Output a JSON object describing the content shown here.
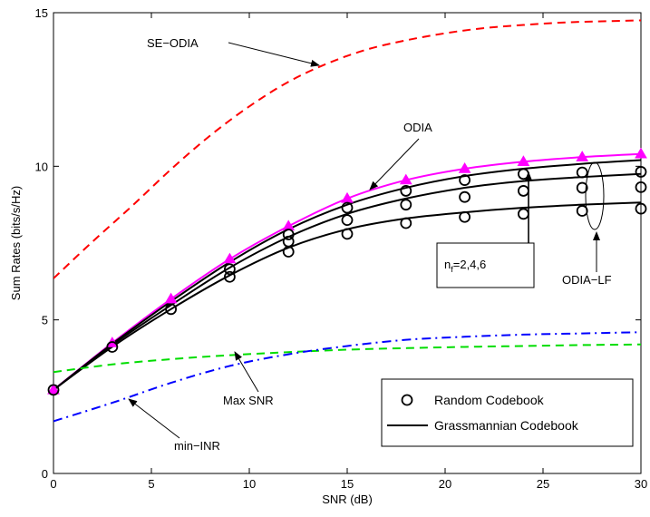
{
  "chart_data": {
    "type": "line",
    "xlabel": "SNR (dB)",
    "ylabel": "Sum Rates (bits/s/Hz)",
    "xlim": [
      0,
      30
    ],
    "ylim": [
      0,
      15
    ],
    "xticks": [
      "0",
      "5",
      "10",
      "15",
      "20",
      "25",
      "30"
    ],
    "yticks": [
      "0",
      "5",
      "10",
      "15"
    ],
    "grid": false,
    "legend_position": "bottom-right",
    "legend": {
      "random_label": "Random Codebook",
      "grass_label": "Grassmannian Codebook"
    },
    "series": [
      {
        "name": "SE−ODIA",
        "color": "#ff0000",
        "style": "dashed",
        "x": [
          0,
          2,
          4,
          6,
          8,
          10,
          12,
          14,
          16,
          18,
          20,
          22,
          24,
          26,
          28,
          30
        ],
        "y": [
          6.35,
          7.55,
          8.7,
          9.9,
          11.0,
          11.95,
          12.75,
          13.35,
          13.8,
          14.1,
          14.33,
          14.5,
          14.6,
          14.68,
          14.72,
          14.75
        ]
      },
      {
        "name": "ODIA",
        "color": "#ff00ff",
        "style": "solid",
        "marker": "triangle",
        "x": [
          0,
          3,
          6,
          9,
          12,
          15,
          18,
          21,
          24,
          27,
          30
        ],
        "y": [
          2.72,
          4.25,
          5.68,
          6.98,
          8.05,
          8.95,
          9.55,
          9.92,
          10.15,
          10.3,
          10.4
        ]
      },
      {
        "name": "ODIA−LF n_f=6",
        "color": "#000000",
        "style": "solid",
        "x": [
          0,
          3,
          6,
          9,
          12,
          15,
          18,
          21,
          24,
          27,
          30
        ],
        "y": [
          2.72,
          4.22,
          5.6,
          6.88,
          7.95,
          8.75,
          9.3,
          9.68,
          9.92,
          10.08,
          10.2
        ]
      },
      {
        "name": "ODIA−LF n_f=4",
        "color": "#000000",
        "style": "solid",
        "x": [
          0,
          3,
          6,
          9,
          12,
          15,
          18,
          21,
          24,
          27,
          30
        ],
        "y": [
          2.72,
          4.18,
          5.48,
          6.7,
          7.7,
          8.45,
          8.95,
          9.3,
          9.52,
          9.65,
          9.75
        ]
      },
      {
        "name": "ODIA−LF n_f=2",
        "color": "#000000",
        "style": "solid",
        "x": [
          0,
          3,
          6,
          9,
          12,
          15,
          18,
          21,
          24,
          27,
          30
        ],
        "y": [
          2.72,
          4.12,
          5.35,
          6.45,
          7.35,
          7.95,
          8.3,
          8.5,
          8.65,
          8.75,
          8.82
        ]
      },
      {
        "name": "Max SNR",
        "color": "#00dd00",
        "style": "dashed",
        "x": [
          0,
          3,
          6,
          9,
          12,
          15,
          18,
          21,
          24,
          27,
          30
        ],
        "y": [
          3.3,
          3.55,
          3.72,
          3.85,
          3.95,
          4.03,
          4.08,
          4.12,
          4.15,
          4.18,
          4.2
        ]
      },
      {
        "name": "min−INR",
        "color": "#0000ff",
        "style": "dashdot",
        "x": [
          0,
          3,
          6,
          9,
          12,
          15,
          18,
          21,
          24,
          27,
          30
        ],
        "y": [
          1.7,
          2.3,
          2.95,
          3.5,
          3.88,
          4.15,
          4.35,
          4.45,
          4.52,
          4.56,
          4.6
        ]
      }
    ],
    "random_codebook_points": {
      "x": [
        0,
        3,
        6,
        9,
        9,
        12,
        12,
        12,
        15,
        15,
        15,
        18,
        18,
        18,
        21,
        21,
        21,
        24,
        24,
        24,
        27,
        27,
        27,
        30,
        30,
        30
      ],
      "y": [
        2.72,
        4.12,
        5.35,
        6.4,
        6.65,
        7.22,
        7.55,
        7.78,
        7.8,
        8.25,
        8.65,
        8.15,
        8.75,
        9.2,
        8.35,
        9.0,
        9.55,
        8.45,
        9.2,
        9.75,
        8.55,
        9.3,
        9.8,
        8.62,
        9.32,
        9.82
      ]
    },
    "annotations": {
      "se_odia": "SE−ODIA",
      "odia": "ODIA",
      "nf_prefix": "n",
      "nf_sub": "f",
      "nf_values": "=2,4,6",
      "odia_lf": "ODIA−LF",
      "max_snr": "Max SNR",
      "min_inr": "min−INR"
    }
  }
}
